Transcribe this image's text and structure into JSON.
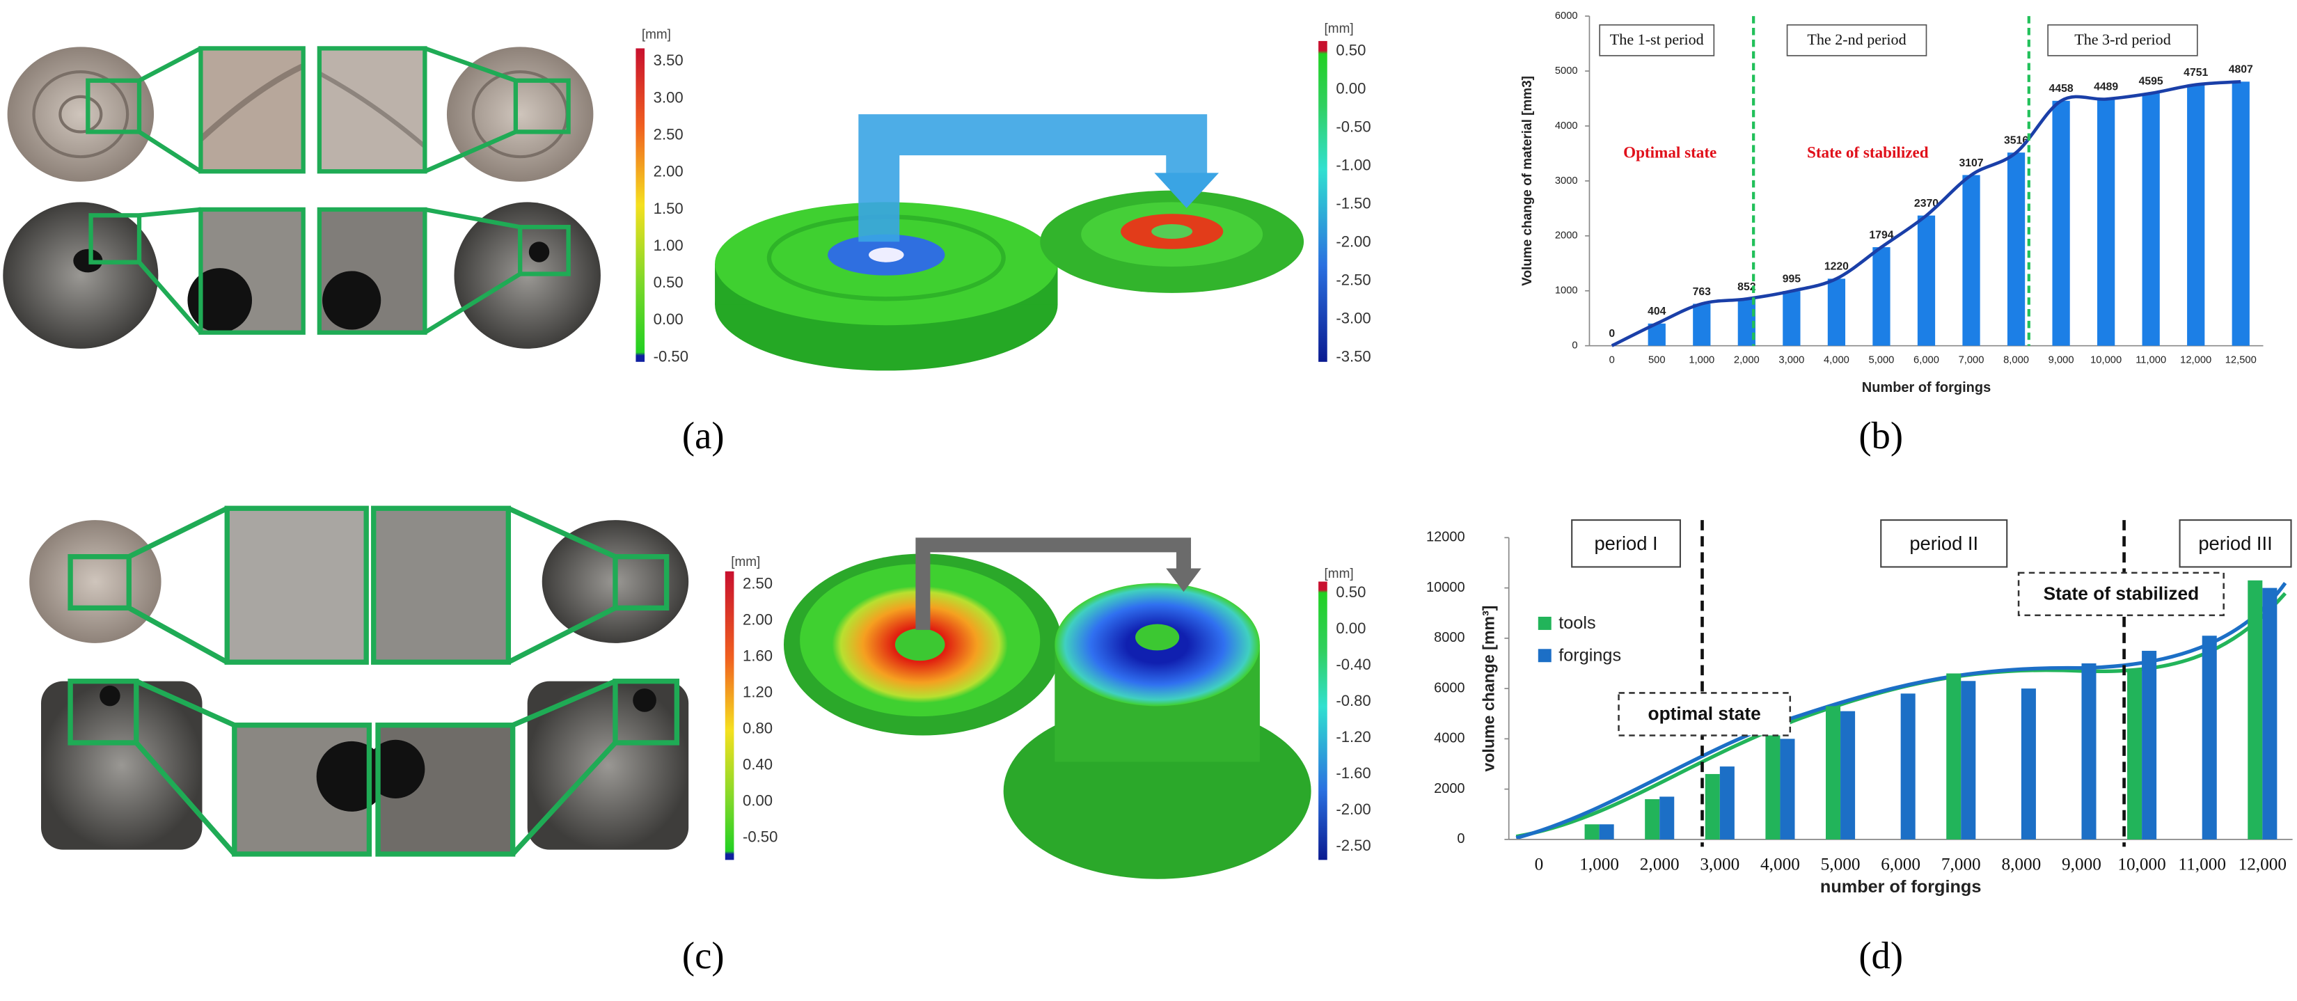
{
  "panel_labels": [
    "(a)",
    "(b)",
    "(c)",
    "(d)"
  ],
  "colorbars": [
    {
      "unit": "[mm]",
      "labels": [
        "3.50",
        "3.00",
        "2.50",
        "2.00",
        "1.50",
        "1.00",
        "0.50",
        "0.00",
        "-0.50"
      ]
    },
    {
      "unit": "[mm]",
      "labels": [
        "0.50",
        "0.00",
        "-0.50",
        "-1.00",
        "-1.50",
        "-2.00",
        "-2.50",
        "-3.00",
        "-3.50"
      ]
    },
    {
      "unit": "[mm]",
      "labels": [
        "2.50",
        "2.00",
        "1.60",
        "1.20",
        "0.80",
        "0.40",
        "0.00",
        "-0.50"
      ]
    },
    {
      "unit": "[mm]",
      "labels": [
        "0.50",
        "0.00",
        "-0.40",
        "-0.80",
        "-1.20",
        "-1.60",
        "-2.00",
        "-2.50"
      ]
    }
  ],
  "chart_data": [
    {
      "type": "bar",
      "x_label": "Number of forgings",
      "y_label": "Volume change of material [mm3]",
      "categories": [
        "0",
        "500",
        "1,000",
        "2,000",
        "3,000",
        "4,000",
        "5,000",
        "6,000",
        "7,000",
        "8,000",
        "9,000",
        "10,000",
        "11,000",
        "12,000",
        "12,500"
      ],
      "values": [
        0,
        404,
        763,
        852,
        995,
        1220,
        1794,
        2370,
        3107,
        3516,
        4458,
        4489,
        4595,
        4751,
        4807
      ],
      "color": "#1c7fe6",
      "trend_color": "#1a3fa8",
      "ylim": [
        0,
        6000
      ],
      "yticks": [
        0,
        1000,
        2000,
        3000,
        4000,
        5000,
        6000
      ],
      "period_labels": [
        "The 1-st period",
        "The 2-nd period",
        "The 3-rd period"
      ],
      "annotations": [
        "Optimal state",
        "State of stabilized"
      ]
    },
    {
      "type": "grouped_bar",
      "x_label": "number of forgings",
      "y_label": "volume change [mm³]",
      "categories": [
        "0",
        "1,000",
        "2,000",
        "3,000",
        "4,000",
        "5,000",
        "6,000",
        "7,000",
        "8,000",
        "9,000",
        "10,000",
        "11,000",
        "12,000"
      ],
      "series": [
        {
          "name": "tools",
          "color": "#22b45a",
          "values": [
            null,
            600,
            1600,
            2600,
            4500,
            5300,
            null,
            6600,
            null,
            null,
            6700,
            null,
            10300
          ]
        },
        {
          "name": "forgings",
          "color": "#1c6fc6",
          "values": [
            null,
            600,
            1700,
            2900,
            4000,
            5100,
            5800,
            6300,
            6000,
            7000,
            7500,
            8100,
            10000
          ]
        }
      ],
      "ylim": [
        0,
        12000
      ],
      "yticks": [
        0,
        2000,
        4000,
        6000,
        8000,
        10000,
        12000
      ],
      "period_labels": [
        "period I",
        "period II",
        "period III"
      ],
      "annotations": [
        "State of stabilized",
        "optimal state"
      ]
    }
  ]
}
